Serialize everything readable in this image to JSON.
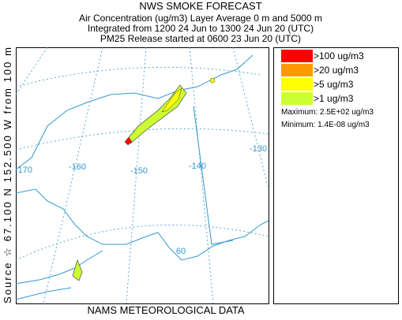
{
  "header": {
    "title": "NWS SMOKE FORECAST",
    "lines": [
      "Air Concentration (ug/m3) Layer Average    0 m and  5000 m",
      "Integrated from 1200 24 Jun to 1300 24 Jun 20 (UTC)",
      "PM25 Release started at 0600 23 Jun 20 (UTC)"
    ]
  },
  "side_label": "Source ☆ 67.100  N 152.500  W    from  100 m",
  "footer": "NAMS METEOROLOGICAL DATA",
  "legend": {
    "items": [
      {
        "label": ">100 ug/m3",
        "color": "#ff0000"
      },
      {
        "label": ">20 ug/m3",
        "color": "#ff9900"
      },
      {
        "label": ">5 ug/m3",
        "color": "#ffff00"
      },
      {
        "label": ">1 ug/m3",
        "color": "#ccff33"
      }
    ],
    "maximum": "Maximum: 2.5E+02 ug/m3",
    "minimum": "Minimum: 1.4E-08 ug/m3"
  },
  "map": {
    "grid_labels": [
      "-170",
      "-160",
      "-150",
      "-140",
      "-130",
      "60"
    ]
  }
}
